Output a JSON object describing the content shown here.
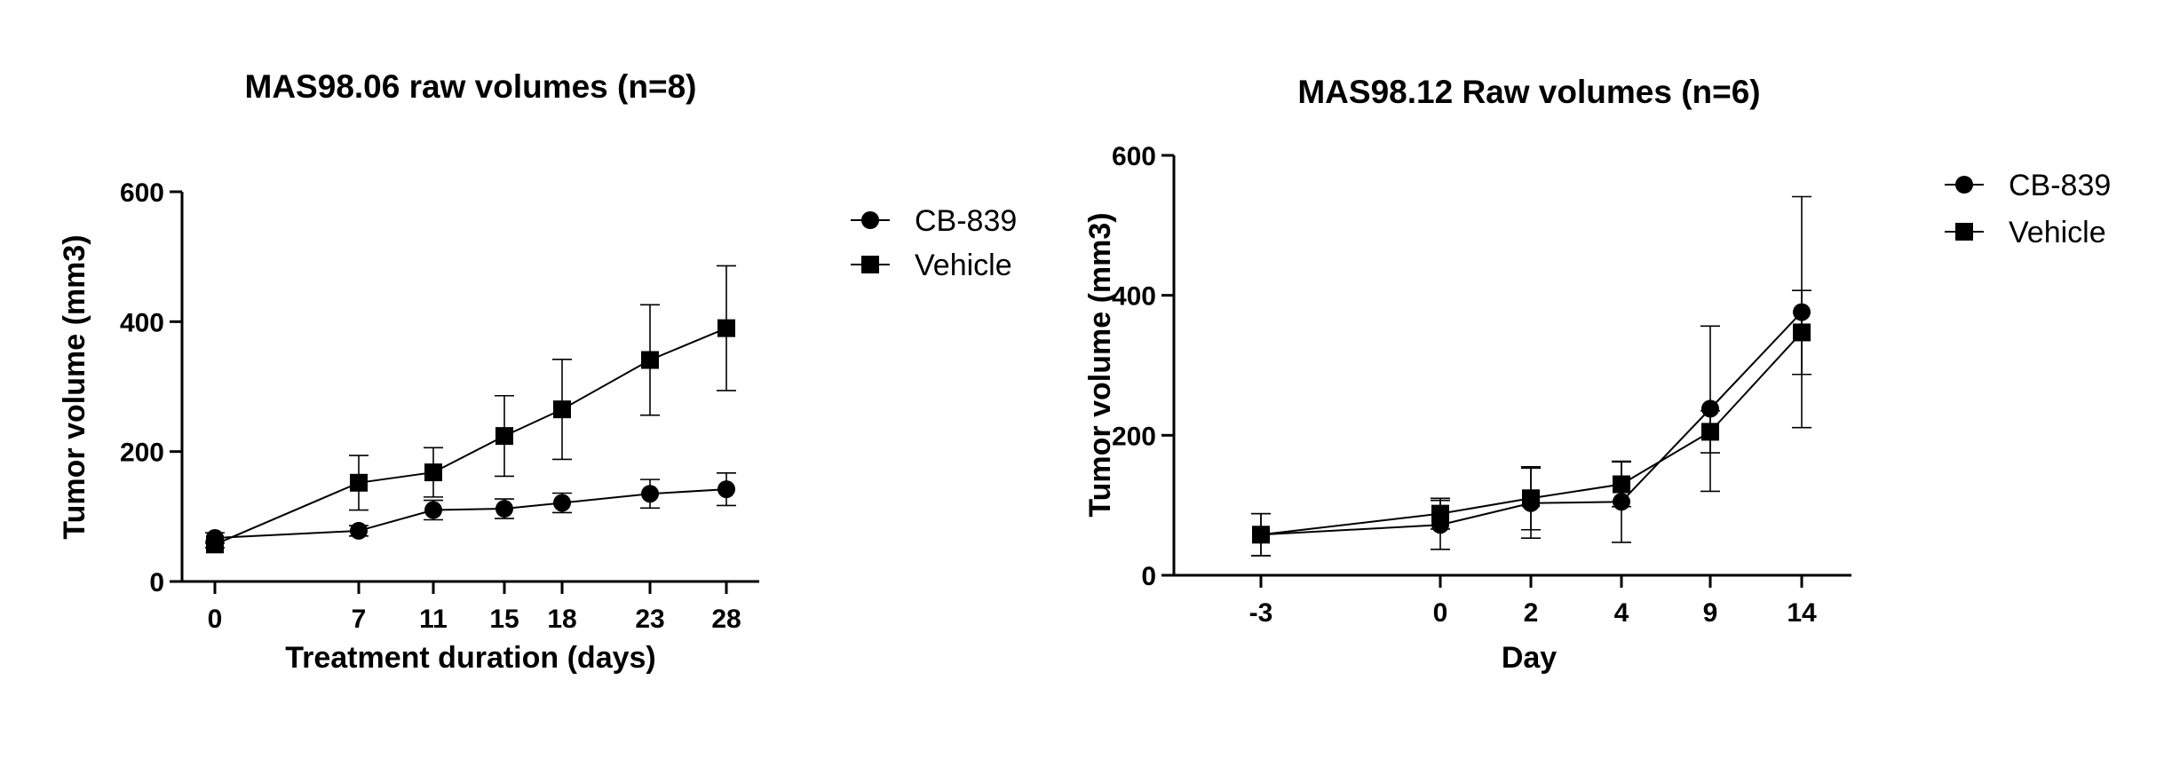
{
  "chart_data": [
    {
      "type": "line",
      "title": "MAS98.06 raw volumes (n=8)",
      "xlabel": "Treatment duration  (days)",
      "ylabel": "Tumor volume (mm3)",
      "ylim": [
        0,
        600
      ],
      "yticks": [
        0,
        200,
        400,
        600
      ],
      "xticks": [
        "0",
        "7",
        "11",
        "15",
        "18",
        "23",
        "28"
      ],
      "legend_position": "right",
      "series": [
        {
          "name": "CB-839",
          "marker": "circle",
          "x": [
            0,
            7,
            11,
            15,
            18,
            23,
            28
          ],
          "y": [
            67,
            78,
            110,
            112,
            121,
            135,
            142
          ],
          "err": [
            8,
            8,
            15,
            15,
            15,
            22,
            25
          ]
        },
        {
          "name": "Vehicle",
          "marker": "square",
          "x": [
            0,
            7,
            11,
            15,
            18,
            23,
            28
          ],
          "y": [
            57,
            152,
            168,
            224,
            265,
            341,
            390
          ],
          "err": [
            5,
            42,
            38,
            62,
            77,
            85,
            96
          ]
        }
      ]
    },
    {
      "type": "line",
      "title": "MAS98.12 Raw volumes (n=6)",
      "xlabel": "Day",
      "ylabel": "Tumor volume (mm3)",
      "ylim": [
        0,
        600
      ],
      "yticks": [
        0,
        200,
        400,
        600
      ],
      "xticks": [
        "-3",
        "0",
        "2",
        "4",
        "9",
        "14"
      ],
      "legend_position": "top-right",
      "series": [
        {
          "name": "CB-839",
          "marker": "circle",
          "x": [
            "-3",
            "0",
            "2",
            "4",
            "9",
            "14"
          ],
          "y": [
            58,
            72,
            103,
            105,
            238,
            376
          ],
          "err": [
            30,
            35,
            50,
            58,
            118,
            165
          ]
        },
        {
          "name": "Vehicle",
          "marker": "square",
          "x": [
            "-3",
            "0",
            "2",
            "4",
            "9",
            "14"
          ],
          "y": [
            58,
            88,
            110,
            130,
            205,
            347
          ],
          "err": [
            30,
            22,
            45,
            32,
            30,
            60
          ]
        }
      ]
    }
  ]
}
